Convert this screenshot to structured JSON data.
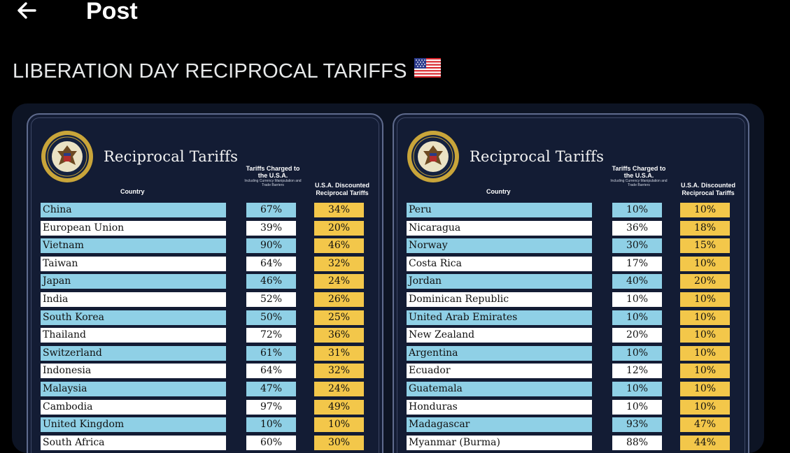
{
  "header": {
    "title": "Post",
    "back_icon": "arrow-left-icon"
  },
  "post": {
    "text": "LIBERATION DAY RECIPROCAL TARIFFS",
    "emoji": "us-flag-icon"
  },
  "colors": {
    "blue_row": "#8fd0e6",
    "white_row": "#ffffff",
    "discount": "#f3c74a",
    "panel_bg": "#131c34"
  },
  "panels": [
    {
      "title": "Reciprocal Tariffs",
      "col_country": "Country",
      "col_charged": "Tariffs Charged to the U.S.A.",
      "col_charged_sub": "Including Currency Manipulation and Trade Barriers",
      "col_discount": "U.S.A. Discounted Reciprocal Tariffs",
      "rows": [
        {
          "country": "China",
          "charged": "67%",
          "discounted": "34%"
        },
        {
          "country": "European Union",
          "charged": "39%",
          "discounted": "20%"
        },
        {
          "country": "Vietnam",
          "charged": "90%",
          "discounted": "46%"
        },
        {
          "country": "Taiwan",
          "charged": "64%",
          "discounted": "32%"
        },
        {
          "country": "Japan",
          "charged": "46%",
          "discounted": "24%"
        },
        {
          "country": "India",
          "charged": "52%",
          "discounted": "26%"
        },
        {
          "country": "South Korea",
          "charged": "50%",
          "discounted": "25%"
        },
        {
          "country": "Thailand",
          "charged": "72%",
          "discounted": "36%"
        },
        {
          "country": "Switzerland",
          "charged": "61%",
          "discounted": "31%"
        },
        {
          "country": "Indonesia",
          "charged": "64%",
          "discounted": "32%"
        },
        {
          "country": "Malaysia",
          "charged": "47%",
          "discounted": "24%"
        },
        {
          "country": "Cambodia",
          "charged": "97%",
          "discounted": "49%"
        },
        {
          "country": "United Kingdom",
          "charged": "10%",
          "discounted": "10%"
        },
        {
          "country": "South Africa",
          "charged": "60%",
          "discounted": "30%"
        }
      ]
    },
    {
      "title": "Reciprocal Tariffs",
      "col_country": "Country",
      "col_charged": "Tariffs Charged to the U.S.A.",
      "col_charged_sub": "Including Currency Manipulation and Trade Barriers",
      "col_discount": "U.S.A. Discounted Reciprocal Tariffs",
      "rows": [
        {
          "country": "Peru",
          "charged": "10%",
          "discounted": "10%"
        },
        {
          "country": "Nicaragua",
          "charged": "36%",
          "discounted": "18%"
        },
        {
          "country": "Norway",
          "charged": "30%",
          "discounted": "15%"
        },
        {
          "country": "Costa Rica",
          "charged": "17%",
          "discounted": "10%"
        },
        {
          "country": "Jordan",
          "charged": "40%",
          "discounted": "20%"
        },
        {
          "country": "Dominican Republic",
          "charged": "10%",
          "discounted": "10%"
        },
        {
          "country": "United Arab Emirates",
          "charged": "10%",
          "discounted": "10%"
        },
        {
          "country": "New Zealand",
          "charged": "20%",
          "discounted": "10%"
        },
        {
          "country": "Argentina",
          "charged": "10%",
          "discounted": "10%"
        },
        {
          "country": "Ecuador",
          "charged": "12%",
          "discounted": "10%"
        },
        {
          "country": "Guatemala",
          "charged": "10%",
          "discounted": "10%"
        },
        {
          "country": "Honduras",
          "charged": "10%",
          "discounted": "10%"
        },
        {
          "country": "Madagascar",
          "charged": "93%",
          "discounted": "47%"
        },
        {
          "country": "Myanmar (Burma)",
          "charged": "88%",
          "discounted": "44%"
        }
      ]
    }
  ]
}
